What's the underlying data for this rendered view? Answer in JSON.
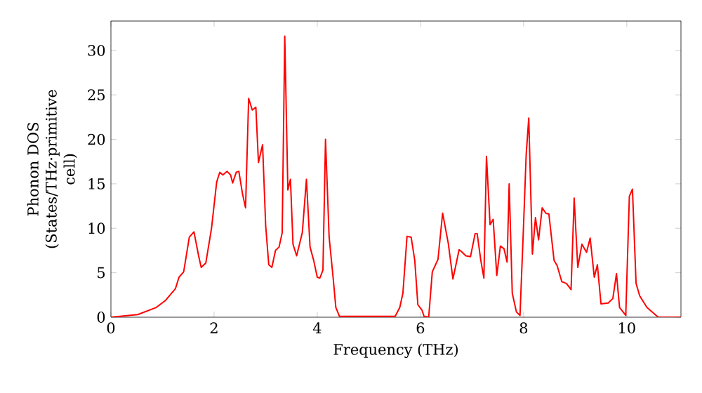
{
  "chart_data": {
    "type": "line",
    "xlabel": "Frequency (THz)",
    "ylabel": "Phonon DOS (States/THz·primitive cell)",
    "color": "#ff0000",
    "xlim": [
      0,
      11.05
    ],
    "ylim": [
      0,
      33.3
    ],
    "xticks": [
      0,
      2,
      4,
      6,
      8,
      10
    ],
    "yticks": [
      0,
      5,
      10,
      15,
      20,
      25,
      30
    ],
    "x": [
      0,
      0.52,
      0.88,
      1.06,
      1.25,
      1.32,
      1.41,
      1.52,
      1.61,
      1.7,
      1.75,
      1.84,
      1.95,
      2.05,
      2.11,
      2.17,
      2.25,
      2.32,
      2.36,
      2.43,
      2.48,
      2.55,
      2.61,
      2.67,
      2.74,
      2.81,
      2.86,
      2.94,
      3.0,
      3.06,
      3.12,
      3.19,
      3.26,
      3.32,
      3.37,
      3.43,
      3.48,
      3.53,
      3.6,
      3.71,
      3.79,
      3.86,
      3.93,
      4.0,
      4.05,
      4.11,
      4.16,
      4.23,
      4.31,
      4.36,
      4.43,
      5.51,
      5.6,
      5.66,
      5.74,
      5.82,
      5.89,
      5.95,
      6.03,
      6.07,
      6.16,
      6.23,
      6.34,
      6.43,
      6.54,
      6.63,
      6.75,
      6.81,
      6.88,
      6.97,
      7.06,
      7.1,
      7.17,
      7.23,
      7.28,
      7.35,
      7.41,
      7.48,
      7.55,
      7.62,
      7.68,
      7.72,
      7.78,
      7.86,
      7.93,
      8.0,
      8.05,
      8.1,
      8.17,
      8.23,
      8.29,
      8.36,
      8.43,
      8.49,
      8.59,
      8.65,
      8.74,
      8.83,
      8.92,
      8.98,
      9.05,
      9.13,
      9.22,
      9.29,
      9.37,
      9.43,
      9.5,
      9.64,
      9.73,
      9.8,
      9.86,
      9.98,
      10.05,
      10.11,
      10.18,
      10.25,
      10.39,
      10.57,
      10.61,
      11.05
    ],
    "values": [
      0,
      0.3,
      1.1,
      1.9,
      3.2,
      4.5,
      5.1,
      9,
      9.6,
      6.9,
      5.6,
      6.1,
      10,
      15.2,
      16.3,
      16,
      16.4,
      16,
      15.1,
      16.3,
      16.4,
      13.9,
      12.3,
      24.6,
      23.3,
      23.6,
      17.4,
      19.4,
      10.3,
      5.9,
      5.6,
      7.5,
      7.9,
      9.5,
      31.6,
      14.3,
      15.5,
      8.2,
      6.9,
      9.5,
      15.5,
      7.9,
      6.4,
      4.5,
      4.4,
      5.3,
      20,
      9,
      4.3,
      1.1,
      0.1,
      0.1,
      1.1,
      2.7,
      9.1,
      9,
      6.4,
      1.4,
      0.8,
      0.1,
      0,
      5.1,
      6.5,
      11.7,
      8.3,
      4.3,
      7.6,
      7.3,
      6.9,
      6.8,
      9.4,
      9.4,
      6.4,
      4.4,
      18.1,
      10.4,
      11,
      4.7,
      8,
      7.7,
      6.2,
      15,
      2.7,
      0.6,
      0.2,
      10.5,
      18.3,
      22.4,
      7.1,
      11.2,
      8.7,
      12.3,
      11.7,
      11.6,
      6.4,
      5.8,
      4,
      3.8,
      3.1,
      13.4,
      5.6,
      8.2,
      7.3,
      8.9,
      4.5,
      5.9,
      1.5,
      1.6,
      2.1,
      4.9,
      1.1,
      0.2,
      13.6,
      14.4,
      3.8,
      2.4,
      1.1,
      0.2,
      0,
      0
    ]
  }
}
